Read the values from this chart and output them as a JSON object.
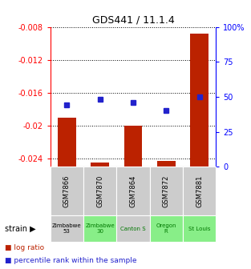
{
  "title": "GDS441 / 11.1.4",
  "samples": [
    "GSM7866",
    "GSM7870",
    "GSM7864",
    "GSM7872",
    "GSM7881"
  ],
  "log_ratios": [
    -0.019,
    -0.0245,
    -0.02,
    -0.0243,
    -0.0088
  ],
  "percentiles": [
    44,
    48,
    46,
    40,
    50
  ],
  "ylim_left": [
    -0.025,
    -0.008
  ],
  "ylim_right": [
    0,
    100
  ],
  "yticks_left": [
    -0.024,
    -0.02,
    -0.016,
    -0.012,
    -0.008
  ],
  "ytick_labels_left": [
    "-0.024",
    "-0.02",
    "-0.016",
    "-0.012",
    "-0.008"
  ],
  "yticks_right": [
    0,
    25,
    50,
    75,
    100
  ],
  "ytick_labels_right": [
    "0",
    "25",
    "50",
    "75",
    "100%"
  ],
  "bar_color": "#bb2200",
  "dot_color": "#2222cc",
  "bg_color": "#ffffff",
  "strain_labels": [
    "Zimbabwe\n53",
    "Zimbabwe\n30",
    "Canton S",
    "Oregon\nR",
    "St Louis"
  ],
  "strain_bg_colors": [
    "#cccccc",
    "#88ee88",
    "#cccccc",
    "#88ee88",
    "#88ee88"
  ],
  "strain_font_colors": [
    "#000000",
    "#007700",
    "#007700",
    "#007700",
    "#007700"
  ],
  "gsm_box_color": "#cccccc",
  "legend_log": "log ratio",
  "legend_pct": "percentile rank within the sample",
  "strain_label": "strain"
}
